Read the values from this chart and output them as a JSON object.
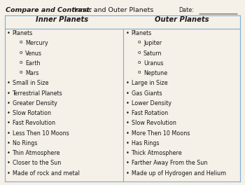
{
  "title_bold": "Compare and Contrast:",
  "title_normal": " Inner and Outer Planets",
  "date_label": "Date:",
  "col1_header": "Inner Planets",
  "col2_header": "Outer Planets",
  "inner_items": [
    {
      "text": "Planets",
      "level": 0
    },
    {
      "text": "Mercury",
      "level": 1
    },
    {
      "text": "Venus",
      "level": 1
    },
    {
      "text": "Earth",
      "level": 1
    },
    {
      "text": "Mars",
      "level": 1
    },
    {
      "text": "Small in Size",
      "level": 0
    },
    {
      "text": "Terrestrial Planets",
      "level": 0
    },
    {
      "text": "Greater Density",
      "level": 0
    },
    {
      "text": "Slow Rotation",
      "level": 0
    },
    {
      "text": "Fast Revolution",
      "level": 0
    },
    {
      "text": "Less Then 10 Moons",
      "level": 0
    },
    {
      "text": "No Rings",
      "level": 0
    },
    {
      "text": "Thin Atmosphere",
      "level": 0
    },
    {
      "text": "Closer to the Sun",
      "level": 0
    },
    {
      "text": "Made of rock and metal",
      "level": 0
    }
  ],
  "outer_items": [
    {
      "text": "Planets",
      "level": 0
    },
    {
      "text": "Jupiter",
      "level": 1
    },
    {
      "text": "Saturn",
      "level": 1
    },
    {
      "text": "Uranus",
      "level": 1
    },
    {
      "text": "Neptune",
      "level": 1
    },
    {
      "text": "Large in Size",
      "level": 0
    },
    {
      "text": "Gas Giants",
      "level": 0
    },
    {
      "text": "Lower Density",
      "level": 0
    },
    {
      "text": "Fast Rotation",
      "level": 0
    },
    {
      "text": "Slow Revolution",
      "level": 0
    },
    {
      "text": "More Then 10 Moons",
      "level": 0
    },
    {
      "text": "Has Rings",
      "level": 0
    },
    {
      "text": "Thick Atmosphere",
      "level": 0
    },
    {
      "text": "Farther Away From the Sun",
      "level": 0
    },
    {
      "text": "Made up of Hydrogen and Helium",
      "level": 0
    }
  ],
  "bg_color": "#f5f0e8",
  "line_color": "#7bafd4",
  "text_color": "#1a1a1a",
  "font_size": 5.8,
  "header_font_size": 7.2,
  "title_font_size": 6.8
}
